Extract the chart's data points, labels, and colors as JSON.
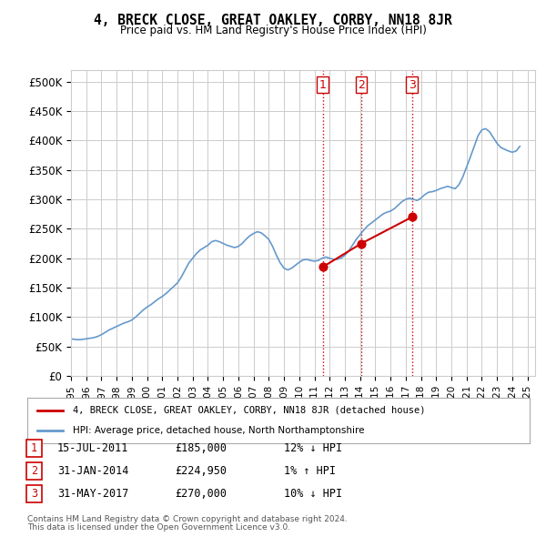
{
  "title": "4, BRECK CLOSE, GREAT OAKLEY, CORBY, NN18 8JR",
  "subtitle": "Price paid vs. HM Land Registry's House Price Index (HPI)",
  "hpi_label": "HPI: Average price, detached house, North Northamptonshire",
  "property_label": "4, BRECK CLOSE, GREAT OAKLEY, CORBY, NN18 8JR (detached house)",
  "ylabel_ticks": [
    "£0",
    "£50K",
    "£100K",
    "£150K",
    "£200K",
    "£250K",
    "£300K",
    "£350K",
    "£400K",
    "£450K",
    "£500K"
  ],
  "ytick_vals": [
    0,
    50000,
    100000,
    150000,
    200000,
    250000,
    300000,
    350000,
    400000,
    450000,
    500000
  ],
  "ylim": [
    0,
    520000
  ],
  "xlim_start": 1995,
  "xlim_end": 2025.5,
  "hpi_color": "#6699cc",
  "property_color": "#cc0000",
  "vline_color": "#cc0000",
  "vline_style": ":",
  "background_color": "#ffffff",
  "grid_color": "#cccccc",
  "transactions": [
    {
      "num": 1,
      "date": "15-JUL-2011",
      "price": 185000,
      "pct": "12%",
      "dir": "↓",
      "year": 2011.54
    },
    {
      "num": 2,
      "date": "31-JAN-2014",
      "price": 224950,
      "pct": "1%",
      "dir": "↑",
      "year": 2014.08
    },
    {
      "num": 3,
      "date": "31-MAY-2017",
      "price": 270000,
      "pct": "10%",
      "dir": "↓",
      "year": 2017.42
    }
  ],
  "footer_line1": "Contains HM Land Registry data © Crown copyright and database right 2024.",
  "footer_line2": "This data is licensed under the Open Government Licence v3.0.",
  "hpi_data_x": [
    1995.0,
    1995.25,
    1995.5,
    1995.75,
    1996.0,
    1996.25,
    1996.5,
    1996.75,
    1997.0,
    1997.25,
    1997.5,
    1997.75,
    1998.0,
    1998.25,
    1998.5,
    1998.75,
    1999.0,
    1999.25,
    1999.5,
    1999.75,
    2000.0,
    2000.25,
    2000.5,
    2000.75,
    2001.0,
    2001.25,
    2001.5,
    2001.75,
    2002.0,
    2002.25,
    2002.5,
    2002.75,
    2003.0,
    2003.25,
    2003.5,
    2003.75,
    2004.0,
    2004.25,
    2004.5,
    2004.75,
    2005.0,
    2005.25,
    2005.5,
    2005.75,
    2006.0,
    2006.25,
    2006.5,
    2006.75,
    2007.0,
    2007.25,
    2007.5,
    2007.75,
    2008.0,
    2008.25,
    2008.5,
    2008.75,
    2009.0,
    2009.25,
    2009.5,
    2009.75,
    2010.0,
    2010.25,
    2010.5,
    2010.75,
    2011.0,
    2011.25,
    2011.5,
    2011.75,
    2012.0,
    2012.25,
    2012.5,
    2012.75,
    2013.0,
    2013.25,
    2013.5,
    2013.75,
    2014.0,
    2014.25,
    2014.5,
    2014.75,
    2015.0,
    2015.25,
    2015.5,
    2015.75,
    2016.0,
    2016.25,
    2016.5,
    2016.75,
    2017.0,
    2017.25,
    2017.5,
    2017.75,
    2018.0,
    2018.25,
    2018.5,
    2018.75,
    2019.0,
    2019.25,
    2019.5,
    2019.75,
    2020.0,
    2020.25,
    2020.5,
    2020.75,
    2021.0,
    2021.25,
    2021.5,
    2021.75,
    2022.0,
    2022.25,
    2022.5,
    2022.75,
    2023.0,
    2023.25,
    2023.5,
    2023.75,
    2024.0,
    2024.25,
    2024.5
  ],
  "hpi_data_y": [
    63000,
    62000,
    61500,
    62000,
    63000,
    64000,
    65000,
    67000,
    70000,
    74000,
    78000,
    81000,
    84000,
    87000,
    90000,
    92000,
    95000,
    100000,
    106000,
    112000,
    117000,
    121000,
    126000,
    131000,
    135000,
    140000,
    146000,
    152000,
    158000,
    168000,
    180000,
    192000,
    200000,
    208000,
    214000,
    218000,
    222000,
    228000,
    230000,
    228000,
    225000,
    222000,
    220000,
    218000,
    220000,
    225000,
    232000,
    238000,
    242000,
    245000,
    243000,
    238000,
    232000,
    220000,
    205000,
    192000,
    183000,
    180000,
    183000,
    188000,
    193000,
    197000,
    198000,
    196000,
    195000,
    196000,
    200000,
    202000,
    200000,
    198000,
    198000,
    200000,
    205000,
    212000,
    222000,
    232000,
    240000,
    248000,
    255000,
    260000,
    265000,
    270000,
    275000,
    278000,
    280000,
    284000,
    290000,
    296000,
    300000,
    302000,
    300000,
    298000,
    302000,
    308000,
    312000,
    313000,
    315000,
    318000,
    320000,
    322000,
    320000,
    318000,
    325000,
    338000,
    355000,
    372000,
    390000,
    408000,
    418000,
    420000,
    415000,
    405000,
    395000,
    388000,
    385000,
    382000,
    380000,
    382000,
    390000
  ],
  "prop_data_x": [
    2011.54,
    2014.08,
    2017.42
  ],
  "prop_data_y": [
    185000,
    224950,
    270000
  ]
}
